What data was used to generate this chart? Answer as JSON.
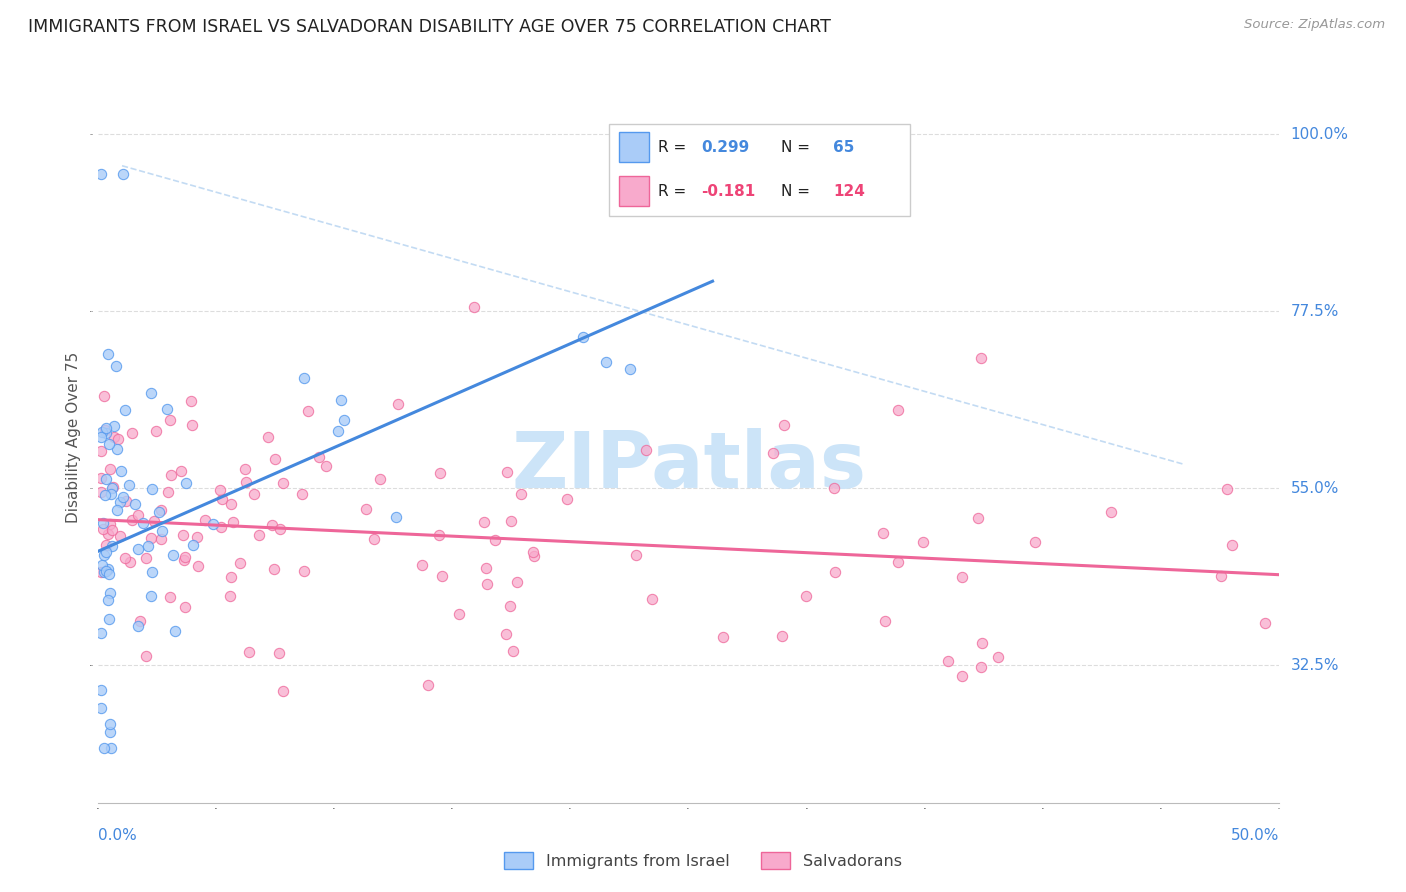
{
  "title": "IMMIGRANTS FROM ISRAEL VS SALVADORAN DISABILITY AGE OVER 75 CORRELATION CHART",
  "source": "Source: ZipAtlas.com",
  "ylabel": "Disability Age Over 75",
  "ytick_labels": [
    "100.0%",
    "77.5%",
    "55.0%",
    "32.5%"
  ],
  "ytick_positions": [
    1.0,
    0.775,
    0.55,
    0.325
  ],
  "xlim": [
    0.0,
    0.5
  ],
  "ylim": [
    0.15,
    1.08
  ],
  "color_israel": "#aaccf8",
  "color_israel_edge": "#5599ee",
  "color_israel_line": "#4488dd",
  "color_salvadoran": "#f8aacc",
  "color_salvadoran_edge": "#ee6699",
  "color_salvadoran_line": "#ee6699",
  "color_text_blue": "#4488dd",
  "color_text_pink": "#ee4477",
  "color_dashed": "#aaccee",
  "watermark_color": "#cce4f8",
  "background_color": "#ffffff",
  "grid_color": "#dddddd",
  "legend_text_color": "#222222"
}
